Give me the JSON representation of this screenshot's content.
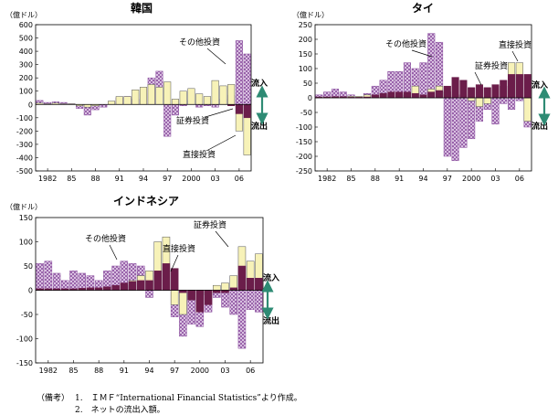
{
  "notes": {
    "label": "（備考）",
    "items": [
      "1.　ＩＭＦ“International Financial Statistics”より作成。",
      "2.　ネットの流出入額。"
    ]
  },
  "colors": {
    "fdi": "#6b1d4a",
    "portfolio": "#f7f2b8",
    "other_fill": "#ead9ef",
    "other_line": "#8a4e9e",
    "arrow": "#2e8b74"
  },
  "chart_data": [
    {
      "type": "bar",
      "title": "韓国",
      "unit_label": "（億ドル）",
      "x": [
        1981,
        1982,
        1983,
        1984,
        1985,
        1986,
        1987,
        1988,
        1989,
        1990,
        1991,
        1992,
        1993,
        1994,
        1995,
        1996,
        1997,
        1998,
        1999,
        2000,
        2001,
        2002,
        2003,
        2004,
        2005,
        2006,
        2007
      ],
      "x_tick_labels": [
        "1982",
        "85",
        "88",
        "91",
        "94",
        "97",
        "2000",
        "03",
        "06"
      ],
      "x_tick_values": [
        1982,
        1985,
        1988,
        1991,
        1994,
        1997,
        2000,
        2003,
        2006
      ],
      "ylim": [
        -500,
        600
      ],
      "y_ticks": [
        -500,
        -400,
        -300,
        -200,
        -100,
        0,
        100,
        200,
        300,
        400,
        500,
        600
      ],
      "legend": [
        "流入",
        "流出"
      ],
      "series": [
        {
          "key": "other",
          "name": "その他投資",
          "values": [
            30,
            15,
            20,
            15,
            5,
            -30,
            -80,
            -40,
            -20,
            20,
            50,
            60,
            40,
            80,
            200,
            250,
            -240,
            -80,
            -10,
            30,
            -20,
            -10,
            -20,
            40,
            70,
            480,
            380
          ]
        },
        {
          "key": "portfolio",
          "name": "証券投資",
          "values": [
            10,
            5,
            10,
            5,
            5,
            -10,
            -20,
            -10,
            0,
            25,
            60,
            60,
            110,
            130,
            150,
            130,
            170,
            40,
            100,
            120,
            80,
            60,
            180,
            140,
            150,
            -200,
            -380
          ]
        },
        {
          "key": "fdi",
          "name": "直接投資",
          "values": [
            0,
            0,
            0,
            0,
            0,
            0,
            0,
            0,
            0,
            0,
            0,
            0,
            0,
            0,
            0,
            0,
            0,
            0,
            0,
            0,
            0,
            0,
            0,
            0,
            -10,
            -70,
            -100
          ]
        }
      ],
      "annotations": [
        "その他投資",
        "直接投資",
        "証券投資"
      ]
    },
    {
      "type": "bar",
      "title": "タイ",
      "unit_label": "（億ドル）",
      "x": [
        1981,
        1982,
        1983,
        1984,
        1985,
        1986,
        1987,
        1988,
        1989,
        1990,
        1991,
        1992,
        1993,
        1994,
        1995,
        1996,
        1997,
        1998,
        1999,
        2000,
        2001,
        2002,
        2003,
        2004,
        2005,
        2006,
        2007
      ],
      "x_tick_labels": [
        "1982",
        "85",
        "88",
        "91",
        "94",
        "97",
        "2000",
        "03",
        "06"
      ],
      "x_tick_values": [
        1982,
        1985,
        1988,
        1991,
        1994,
        1997,
        2000,
        2003,
        2006
      ],
      "ylim": [
        -250,
        250
      ],
      "y_ticks": [
        -250,
        -200,
        -150,
        -100,
        -50,
        0,
        50,
        100,
        150,
        200,
        250
      ],
      "legend": [
        "流入",
        "流出"
      ],
      "series": [
        {
          "key": "other",
          "name": "その他投資",
          "values": [
            10,
            20,
            30,
            20,
            10,
            0,
            15,
            40,
            60,
            90,
            90,
            120,
            100,
            120,
            220,
            190,
            -200,
            -215,
            -170,
            -140,
            -80,
            -40,
            -90,
            -20,
            -40,
            -10,
            -100
          ]
        },
        {
          "key": "portfolio",
          "name": "証券投資",
          "values": [
            0,
            0,
            0,
            0,
            5,
            5,
            10,
            10,
            15,
            10,
            10,
            10,
            40,
            10,
            30,
            40,
            20,
            10,
            10,
            -10,
            -30,
            -20,
            0,
            40,
            120,
            120,
            -80
          ]
        },
        {
          "key": "fdi",
          "name": "直接投資",
          "values": [
            3,
            3,
            4,
            4,
            2,
            2,
            3,
            10,
            15,
            20,
            20,
            20,
            15,
            10,
            20,
            25,
            40,
            70,
            60,
            35,
            45,
            35,
            45,
            60,
            80,
            80,
            80
          ]
        }
      ],
      "annotations": [
        "その他投資",
        "直接投資",
        "証券投資"
      ]
    },
    {
      "type": "bar",
      "title": "インドネシア",
      "unit_label": "（億ドル）",
      "x": [
        1981,
        1982,
        1983,
        1984,
        1985,
        1986,
        1987,
        1988,
        1989,
        1990,
        1991,
        1992,
        1993,
        1994,
        1995,
        1996,
        1997,
        1998,
        1999,
        2000,
        2001,
        2002,
        2003,
        2004,
        2005,
        2006,
        2007
      ],
      "x_tick_labels": [
        "1982",
        "85",
        "88",
        "91",
        "94",
        "97",
        "2000",
        "03",
        "06"
      ],
      "x_tick_values": [
        1982,
        1985,
        1988,
        1991,
        1994,
        1997,
        2000,
        2003,
        2006
      ],
      "ylim": [
        -150,
        150
      ],
      "y_ticks": [
        -150,
        -100,
        -50,
        0,
        50,
        100,
        150
      ],
      "legend": [
        "流入",
        "流出"
      ],
      "series": [
        {
          "key": "other",
          "name": "その他投資",
          "values": [
            55,
            60,
            35,
            20,
            40,
            35,
            30,
            20,
            40,
            50,
            60,
            55,
            50,
            -15,
            30,
            40,
            -55,
            -95,
            -70,
            -75,
            -45,
            -15,
            -35,
            -50,
            -120,
            -40,
            -45
          ]
        },
        {
          "key": "portfolio",
          "name": "証券投資",
          "values": [
            0,
            0,
            0,
            0,
            0,
            0,
            0,
            0,
            0,
            0,
            10,
            20,
            30,
            40,
            100,
            110,
            -30,
            -50,
            -20,
            -20,
            -10,
            10,
            15,
            30,
            90,
            60,
            75
          ]
        },
        {
          "key": "fdi",
          "name": "直接投資",
          "values": [
            3,
            3,
            3,
            3,
            3,
            4,
            5,
            5,
            7,
            10,
            15,
            18,
            20,
            20,
            40,
            55,
            45,
            -5,
            -20,
            -45,
            -30,
            -5,
            -5,
            5,
            50,
            25,
            25
          ]
        }
      ],
      "annotations": [
        "その他投資",
        "直接投資",
        "証券投資"
      ]
    }
  ]
}
